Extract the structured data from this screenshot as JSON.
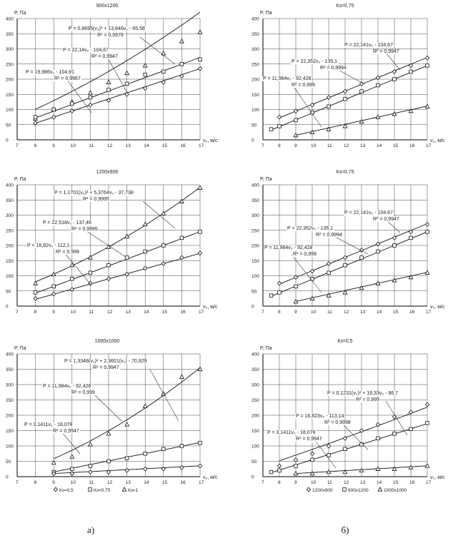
{
  "chart_data": [
    {
      "type": "line",
      "title": "900x1200",
      "ylabel": "P, Па",
      "xlabel": "v₀, м/с",
      "xlim": [
        7,
        17
      ],
      "ylim": [
        0,
        400
      ],
      "xticks": [
        "7",
        "8",
        "9",
        "10",
        "11",
        "12",
        "13",
        "14",
        "15",
        "16",
        "17"
      ],
      "yticks": [
        "0",
        "50",
        "100",
        "150",
        "200",
        "250",
        "300",
        "350",
        "400"
      ],
      "series": [
        {
          "marker": "triangle",
          "x": [
            8,
            9,
            10,
            11,
            12,
            13,
            14,
            15,
            16,
            17
          ],
          "y": [
            70,
            100,
            125,
            155,
            190,
            220,
            245,
            285,
            325,
            355
          ],
          "fit": {
            "a": 0.8695,
            "b": 13.846,
            "c": -65.58
          },
          "eq": "P = 0,8695(v₀)² + 13,846v₀ - 65,58",
          "r2": "R² = 0,9978"
        },
        {
          "marker": "square",
          "x": [
            8,
            9,
            10,
            11,
            12,
            13,
            14,
            15,
            16,
            17
          ],
          "y": [
            75,
            100,
            120,
            140,
            165,
            185,
            215,
            225,
            250,
            265
          ],
          "fit": {
            "a": 0,
            "b": 22.14,
            "c": -104.67
          },
          "eq": "P = 22,14v₀ - 104,67",
          "r2": "R² = 0,9947"
        },
        {
          "marker": "diamond",
          "x": [
            8,
            9,
            10,
            11,
            12,
            13,
            14,
            15,
            16,
            17
          ],
          "y": [
            55,
            75,
            95,
            115,
            130,
            150,
            170,
            190,
            210,
            235
          ],
          "fit": {
            "a": 0,
            "b": 19.986,
            "c": -104.91
          },
          "eq": "P = 19,986v₀ - 104,91",
          "r2": "R² = 0,9967"
        }
      ]
    },
    {
      "type": "line",
      "title": "Кз=0,75",
      "ylabel": "P, Па",
      "xlabel": "v₀, м/с",
      "xlim": [
        7,
        17
      ],
      "ylim": [
        0,
        400
      ],
      "xticks": [
        "7",
        "8",
        "9",
        "10",
        "11",
        "12",
        "13",
        "14",
        "15",
        "16",
        "17"
      ],
      "yticks": [
        "0",
        "50",
        "100",
        "150",
        "200",
        "250",
        "300",
        "350",
        "400"
      ],
      "series": [
        {
          "marker": "diamond",
          "x": [
            8,
            9,
            10,
            11,
            12,
            13,
            14,
            15,
            16,
            17
          ],
          "y": [
            75,
            95,
            115,
            140,
            160,
            185,
            205,
            225,
            245,
            270
          ],
          "fit": {
            "a": 0,
            "b": 22.141,
            "c": -104.67
          },
          "eq": "P = 22,141v₀ - 104,67",
          "r2": "R² = 0,9947"
        },
        {
          "marker": "square",
          "x": [
            7.5,
            8,
            9,
            10,
            11,
            12,
            13,
            14,
            15,
            16,
            17
          ],
          "y": [
            35,
            45,
            65,
            90,
            110,
            135,
            160,
            180,
            200,
            225,
            245
          ],
          "fit": {
            "a": 0,
            "b": 22.352,
            "c": -135.1
          },
          "eq": "P = 22,352v₀ - 135,1",
          "r2": "R² = 0,9994"
        },
        {
          "marker": "triangle",
          "x": [
            9,
            10,
            11,
            12,
            13,
            14,
            15,
            16,
            17
          ],
          "y": [
            15,
            25,
            35,
            45,
            60,
            75,
            85,
            95,
            110
          ],
          "fit": {
            "a": 0,
            "b": 11.984,
            "c": -92.428
          },
          "eq": "P = 11,984v₀ - 92,428",
          "r2": "R² = 0,999"
        }
      ]
    },
    {
      "type": "line",
      "title": "1200x900",
      "ylabel": "P, Па",
      "xlabel": "v₀, м/с",
      "xlim": [
        7,
        17
      ],
      "ylim": [
        0,
        400
      ],
      "xticks": [
        "7",
        "8",
        "9",
        "10",
        "11",
        "12",
        "13",
        "14",
        "15",
        "16",
        "17"
      ],
      "yticks": [
        "0",
        "50",
        "100",
        "150",
        "200",
        "250",
        "300",
        "350",
        "400"
      ],
      "series": [
        {
          "marker": "triangle",
          "x": [
            8,
            9,
            10,
            11,
            12,
            13,
            14,
            15,
            16,
            17
          ],
          "y": [
            75,
            105,
            135,
            160,
            195,
            230,
            270,
            305,
            345,
            390
          ],
          "fit": {
            "a": 1.1701,
            "b": 5.3764,
            "c": -37.738
          },
          "eq": "P = 1,1701(v₀)² + 5,3764v₀ - 37,738",
          "r2": "R² = 0,9995"
        },
        {
          "marker": "square",
          "x": [
            8,
            9,
            10,
            11,
            12,
            13,
            14,
            15,
            16,
            17
          ],
          "y": [
            45,
            65,
            90,
            110,
            135,
            160,
            180,
            200,
            225,
            245
          ],
          "fit": {
            "a": 0,
            "b": 22.518,
            "c": -137.46
          },
          "eq": "P = 22,518v₀ - 137,46",
          "r2": "R² = 0,9995"
        },
        {
          "marker": "diamond",
          "x": [
            8,
            9,
            10,
            11,
            12,
            13,
            14,
            15,
            16,
            17
          ],
          "y": [
            25,
            40,
            55,
            75,
            90,
            105,
            125,
            140,
            160,
            175
          ],
          "fit": {
            "a": 0,
            "b": 16.82,
            "c": -112.1
          },
          "eq": "P = 16,82v₀ - 112,1",
          "r2": "R² = 0,999"
        }
      ]
    },
    {
      "type": "line",
      "title": "Кз=0,75",
      "ylabel": "P, Па",
      "xlabel": "v₀, м/с",
      "xlim": [
        7,
        17
      ],
      "ylim": [
        0,
        400
      ],
      "xticks": [
        "7",
        "8",
        "9",
        "10",
        "11",
        "12",
        "13",
        "14",
        "15",
        "16",
        "17"
      ],
      "yticks": [
        "0",
        "50",
        "100",
        "150",
        "200",
        "250",
        "300",
        "350",
        "400"
      ],
      "series": [
        {
          "marker": "diamond",
          "x": [
            8,
            9,
            10,
            11,
            12,
            13,
            14,
            15,
            16,
            17
          ],
          "y": [
            75,
            95,
            115,
            140,
            160,
            185,
            205,
            225,
            245,
            270
          ],
          "fit": {
            "a": 0,
            "b": 22.141,
            "c": -104.67
          },
          "eq": "P = 22,141v₀ - 104,67",
          "r2": "R² = 0,9947"
        },
        {
          "marker": "square",
          "x": [
            7.5,
            8,
            9,
            10,
            11,
            12,
            13,
            14,
            15,
            16,
            17
          ],
          "y": [
            35,
            45,
            65,
            90,
            110,
            135,
            160,
            180,
            200,
            225,
            245
          ],
          "fit": {
            "a": 0,
            "b": 22.352,
            "c": -135.1
          },
          "eq": "P = 22,352v₀ - 135,1",
          "r2": "R² = 0,9994"
        },
        {
          "marker": "triangle",
          "x": [
            9,
            10,
            11,
            12,
            13,
            14,
            15,
            16,
            17
          ],
          "y": [
            15,
            25,
            35,
            45,
            60,
            75,
            85,
            95,
            110
          ],
          "fit": {
            "a": 0,
            "b": 11.984,
            "c": -92.428
          },
          "eq": "P = 11,984v₀ - 92,428",
          "r2": "R² = 0,999"
        }
      ]
    },
    {
      "type": "line",
      "title": "1000x1000",
      "ylabel": "P, Па",
      "xlabel": "v₀, м/с",
      "xlim": [
        7,
        17
      ],
      "ylim": [
        0,
        400
      ],
      "xticks": [
        "7",
        "8",
        "9",
        "10",
        "11",
        "12",
        "13",
        "14",
        "15",
        "16",
        "17"
      ],
      "yticks": [
        "0",
        "50",
        "100",
        "150",
        "200",
        "250",
        "300",
        "350",
        "400"
      ],
      "series": [
        {
          "marker": "triangle",
          "x": [
            9,
            10,
            11,
            12,
            13,
            14,
            15,
            16,
            17
          ],
          "y": [
            45,
            65,
            105,
            140,
            170,
            230,
            270,
            325,
            350
          ],
          "fit": {
            "a": 1.3348,
            "b": 2.3601,
            "c": -70.929
          },
          "eq": "P = 1,3348(v₀)² + 2,3601(v₀) - 70,929",
          "r2": "R² = 0,9947"
        },
        {
          "marker": "square",
          "x": [
            9,
            10,
            11,
            12,
            13,
            14,
            15,
            16,
            17
          ],
          "y": [
            15,
            25,
            35,
            50,
            60,
            75,
            90,
            100,
            110
          ],
          "fit": {
            "a": 0,
            "b": 11.984,
            "c": -92.428
          },
          "eq": "P = 11,984v₀ - 92,428",
          "r2": "R² = 0,999"
        },
        {
          "marker": "diamond",
          "x": [
            9,
            10,
            11,
            12,
            13,
            14,
            15,
            16,
            17
          ],
          "y": [
            10,
            10,
            15,
            15,
            20,
            25,
            25,
            30,
            35
          ],
          "fit": {
            "a": 0,
            "b": 3.1411,
            "c": -18.078
          },
          "eq": "P = 3,1411v₀ - 18,078",
          "r2": "R² = 0,9947"
        }
      ]
    },
    {
      "type": "line",
      "title": "Кз=0,5",
      "ylabel": "P, Па",
      "xlabel": "v₀, м/с",
      "xlim": [
        7,
        17
      ],
      "ylim": [
        0,
        400
      ],
      "xticks": [
        "7",
        "8",
        "9",
        "10",
        "11",
        "12",
        "13",
        "14",
        "15",
        "16",
        "17"
      ],
      "yticks": [
        "0",
        "50",
        "100",
        "150",
        "200",
        "250",
        "300",
        "350",
        "400"
      ],
      "series": [
        {
          "marker": "diamond",
          "x": [
            8,
            9,
            10,
            11,
            12,
            13,
            14,
            15,
            16,
            17
          ],
          "y": [
            35,
            55,
            75,
            100,
            125,
            150,
            170,
            195,
            210,
            235
          ],
          "fit": {
            "a": 0.1231,
            "b": 16.33,
            "c": -86.7
          },
          "eq": "P = 0,1231(v₀)² + 16,33v₀ - 86,7",
          "r2": "R² = 0,999"
        },
        {
          "marker": "square",
          "x": [
            7.5,
            8,
            9,
            10,
            11,
            12,
            13,
            14,
            15,
            16,
            17
          ],
          "y": [
            15,
            20,
            35,
            55,
            70,
            90,
            105,
            125,
            140,
            155,
            175
          ],
          "fit": {
            "a": 0,
            "b": 16.823,
            "c": -113.14
          },
          "eq": "P = 16,823v₀ - 113,14",
          "r2": "R² = 0,9998"
        },
        {
          "marker": "triangle",
          "x": [
            9,
            10,
            11,
            12,
            13,
            14,
            15,
            16,
            17
          ],
          "y": [
            10,
            10,
            15,
            15,
            20,
            25,
            25,
            30,
            35
          ],
          "fit": {
            "a": 0,
            "b": 3.1411,
            "c": -18.078
          },
          "eq": "P = 3,1411v₀ - 18,078",
          "r2": "R² = 0,9947"
        }
      ]
    }
  ],
  "legends": [
    {
      "items": [
        {
          "marker": "diamond",
          "label": "Кз=0,5"
        },
        {
          "marker": "square",
          "label": "Кз=0,75"
        },
        {
          "marker": "triangle",
          "label": "Кз=1"
        }
      ]
    },
    {
      "items": [
        {
          "marker": "diamond",
          "label": "1200x900"
        },
        {
          "marker": "square",
          "label": "900x1200"
        },
        {
          "marker": "triangle",
          "label": "1000x1000"
        }
      ]
    }
  ],
  "captions": [
    "а)",
    "б)"
  ]
}
